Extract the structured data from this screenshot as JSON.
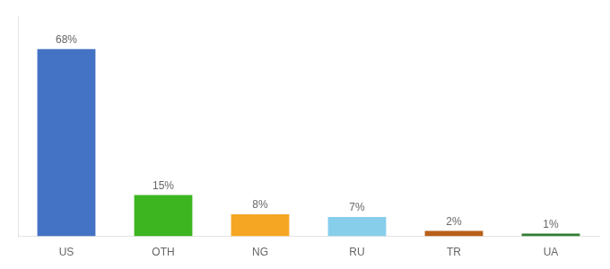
{
  "chart_data": {
    "type": "bar",
    "categories": [
      "US",
      "OTH",
      "NG",
      "RU",
      "TR",
      "UA"
    ],
    "values": [
      68,
      15,
      8,
      7,
      2,
      1
    ],
    "value_labels": [
      "68%",
      "15%",
      "8%",
      "7%",
      "2%",
      "1%"
    ],
    "colors": [
      "#4472c4",
      "#3cb521",
      "#f5a623",
      "#87ceeb",
      "#b8601a",
      "#2e7d32"
    ],
    "ylim": [
      0,
      80
    ],
    "grid": false,
    "data_labels": true,
    "tick_labels": "x"
  }
}
